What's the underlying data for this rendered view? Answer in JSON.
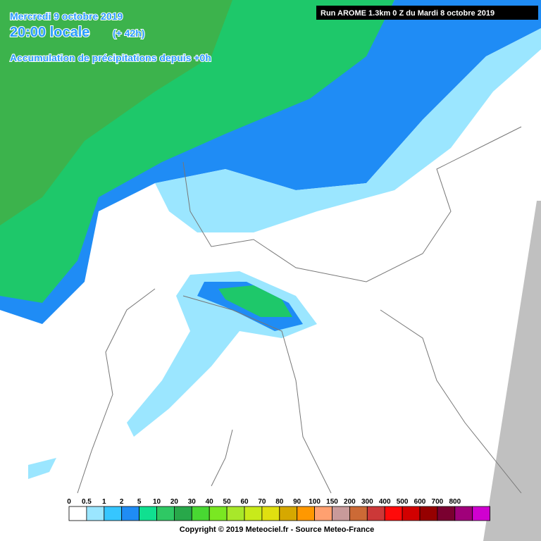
{
  "header": {
    "date": "Mercredi 9 octobre 2019",
    "time": "20:00 locale",
    "lead": "(+ 42h)",
    "subtitle": "Accumulation de précipitations depuis +0h"
  },
  "run_info": "Run AROME 1.3km 0 Z du Mardi 8 octobre 2019",
  "legend": {
    "labels": [
      0,
      0.5,
      1,
      2,
      5,
      10,
      20,
      30,
      40,
      50,
      60,
      70,
      80,
      90,
      100,
      150,
      200,
      300,
      400,
      500,
      600,
      700,
      800
    ],
    "colors": [
      "#ffffff",
      "#9be6ff",
      "#36c6ff",
      "#1f8cf5",
      "#10e090",
      "#2fc864",
      "#28a84a",
      "#48d832",
      "#7ae822",
      "#a8e82a",
      "#c8ea1a",
      "#e0e010",
      "#d6a800",
      "#ff9800",
      "#ffa070",
      "#c89a9a",
      "#cc6a36",
      "#cc3838",
      "#ff0a0a",
      "#d20000",
      "#960000",
      "#7a0030",
      "#a0007a",
      "#d000d0"
    ]
  },
  "copyright": "Copyright © 2019 Meteociel.fr - Source Meteo-France"
}
